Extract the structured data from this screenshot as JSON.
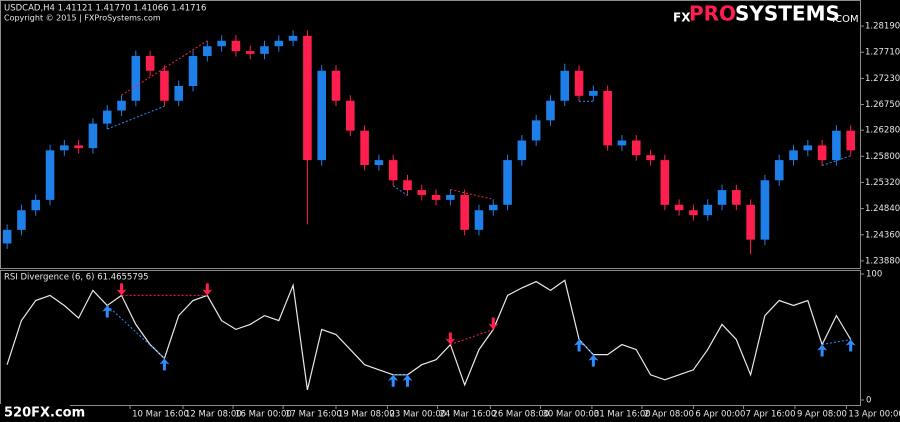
{
  "chart_data": {
    "type": "candlestick",
    "symbol_info": "USDCAD,H4  1.41121 1.41770 1.41066 1.41716",
    "copyright": "Copyright © 2015 | FXProSystems.com",
    "logo": {
      "prefix": "FX",
      "accent": "PRO",
      "main": "SYSTEMS",
      "suffix": ".COM"
    },
    "watermark": "520FX.com",
    "up_color": "#1e7fe8",
    "down_color": "#ff1f4f",
    "xlim": [
      -0.5,
      59.65
    ],
    "ylim": [
      1.2375,
      1.2865
    ],
    "yticks": [
      {
        "value": 1.2819,
        "label": "1.28190"
      },
      {
        "value": 1.2771,
        "label": "1.27710"
      },
      {
        "value": 1.2723,
        "label": "1.27230"
      },
      {
        "value": 1.2675,
        "label": "1.26750"
      },
      {
        "value": 1.2628,
        "label": "1.26280"
      },
      {
        "value": 1.258,
        "label": "1.25800"
      },
      {
        "value": 1.2532,
        "label": "1.25320"
      },
      {
        "value": 1.2484,
        "label": "1.24840"
      },
      {
        "value": 1.2436,
        "label": "1.24360"
      },
      {
        "value": 1.2388,
        "label": "1.23880"
      }
    ],
    "xticks": [
      {
        "value": 8.6,
        "label": "10 Mar 16:00"
      },
      {
        "value": 12.3,
        "label": "12 Mar 08:00"
      },
      {
        "value": 15.8,
        "label": "16 Mar 00:00"
      },
      {
        "value": 19.3,
        "label": "17 Mar 16:00"
      },
      {
        "value": 23.0,
        "label": "19 Mar 08:00"
      },
      {
        "value": 26.6,
        "label": "23 Mar 00:00"
      },
      {
        "value": 30.1,
        "label": "24 Mar 16:00"
      },
      {
        "value": 33.8,
        "label": "26 Mar 08:00"
      },
      {
        "value": 37.3,
        "label": "30 Mar 00:00"
      },
      {
        "value": 40.9,
        "label": "31 Mar 16:00"
      },
      {
        "value": 44.4,
        "label": "2 Apr 08:00"
      },
      {
        "value": 48.0,
        "label": "6 Apr 00:00"
      },
      {
        "value": 51.5,
        "label": "7 Apr 16:00"
      },
      {
        "value": 55.1,
        "label": "9 Apr 08:00"
      },
      {
        "value": 58.7,
        "label": "13 Apr 00:00"
      }
    ],
    "open": [
      1.242,
      1.2445,
      1.2481,
      1.25,
      1.2591,
      1.26,
      1.2595,
      1.264,
      1.2664,
      1.2682,
      1.2764,
      1.2737,
      1.2682,
      1.2709,
      1.2764,
      1.2782,
      1.2792,
      1.2773,
      1.2768,
      1.2782,
      1.2792,
      1.2801,
      1.2573,
      1.2737,
      1.2682,
      1.2627,
      1.2564,
      1.2573,
      1.2536,
      1.2518,
      1.2509,
      1.25,
      1.2509,
      1.2445,
      1.2481,
      1.2491,
      1.2573,
      1.2609,
      1.2646,
      1.2682,
      1.2737,
      1.2691,
      1.27,
      1.26,
      1.2609,
      1.2582,
      1.2573,
      1.2491,
      1.2481,
      1.2472,
      1.2491,
      1.2518,
      1.2491,
      1.2427,
      1.2536,
      1.2573,
      1.2591,
      1.26,
      1.2573,
      1.2627
    ],
    "high": [
      1.2455,
      1.2491,
      1.251,
      1.2601,
      1.261,
      1.261,
      1.265,
      1.2674,
      1.2692,
      1.2774,
      1.2774,
      1.2747,
      1.2719,
      1.2774,
      1.2792,
      1.2802,
      1.2802,
      1.2783,
      1.2792,
      1.2802,
      1.2811,
      1.2811,
      1.2747,
      1.2747,
      1.2692,
      1.2637,
      1.2583,
      1.2583,
      1.2546,
      1.2528,
      1.2519,
      1.2519,
      1.2519,
      1.2491,
      1.2501,
      1.2583,
      1.2619,
      1.2656,
      1.2692,
      1.275,
      1.2747,
      1.271,
      1.271,
      1.2619,
      1.2619,
      1.2592,
      1.2583,
      1.2501,
      1.2491,
      1.2501,
      1.2528,
      1.2528,
      1.2501,
      1.2546,
      1.2583,
      1.2601,
      1.261,
      1.261,
      1.2637,
      1.2637
    ],
    "low": [
      1.241,
      1.2435,
      1.2471,
      1.249,
      1.2581,
      1.2585,
      1.2585,
      1.263,
      1.2654,
      1.2672,
      1.2727,
      1.2672,
      1.2672,
      1.2699,
      1.2754,
      1.2772,
      1.2763,
      1.2758,
      1.2758,
      1.2772,
      1.2782,
      1.2455,
      1.2563,
      1.2672,
      1.2617,
      1.2554,
      1.2554,
      1.2526,
      1.2508,
      1.2499,
      1.249,
      1.249,
      1.2435,
      1.2435,
      1.2471,
      1.2481,
      1.2563,
      1.2599,
      1.2636,
      1.2672,
      1.2681,
      1.2681,
      1.259,
      1.259,
      1.2572,
      1.2563,
      1.2481,
      1.2471,
      1.2462,
      1.2462,
      1.2481,
      1.2481,
      1.24,
      1.2417,
      1.2526,
      1.2563,
      1.2581,
      1.2563,
      1.2563,
      1.2581
    ],
    "close": [
      1.2445,
      1.2481,
      1.25,
      1.2591,
      1.26,
      1.2595,
      1.264,
      1.2664,
      1.2682,
      1.2764,
      1.2737,
      1.2682,
      1.2709,
      1.2764,
      1.2782,
      1.2792,
      1.2773,
      1.2768,
      1.2782,
      1.2792,
      1.2801,
      1.2573,
      1.2737,
      1.2682,
      1.2627,
      1.2564,
      1.2573,
      1.2536,
      1.2518,
      1.2509,
      1.25,
      1.2509,
      1.2445,
      1.2481,
      1.2491,
      1.2573,
      1.2609,
      1.2646,
      1.2682,
      1.2737,
      1.2691,
      1.27,
      1.26,
      1.2609,
      1.2582,
      1.2573,
      1.2491,
      1.2481,
      1.2472,
      1.2491,
      1.2518,
      1.2491,
      1.2427,
      1.2536,
      1.2573,
      1.2591,
      1.26,
      1.2573,
      1.2627,
      1.2591
    ],
    "rsi": {
      "label": "RSI Divergence (6, 6) 61.4655795",
      "color": "#e8e8e8",
      "ylim": [
        0,
        100
      ],
      "yticks": [
        100,
        0
      ],
      "values": [
        28,
        63,
        79,
        83,
        75,
        65,
        87,
        75,
        83,
        60,
        44,
        33,
        67,
        79,
        83,
        63,
        56,
        60,
        67,
        63,
        91,
        8,
        56,
        52,
        40,
        28,
        24,
        20,
        20,
        28,
        32,
        44,
        12,
        40,
        56,
        83,
        89,
        94,
        87,
        95,
        48,
        36,
        36,
        44,
        40,
        20,
        16,
        20,
        24,
        40,
        60,
        48,
        20,
        67,
        79,
        75,
        79,
        44,
        67,
        48
      ]
    },
    "divergences": [
      {
        "type": "bearish",
        "from": 8,
        "to": 14,
        "color": "#ff1f4f"
      },
      {
        "type": "bearish",
        "from": 31,
        "to": 34,
        "color": "#ff1f4f"
      },
      {
        "type": "bullish",
        "from": 7,
        "to": 11,
        "color": "#2f8cff"
      },
      {
        "type": "bullish",
        "from": 27,
        "to": 28,
        "color": "#2f8cff"
      },
      {
        "type": "bullish",
        "from": 40,
        "to": 41,
        "color": "#2f8cff"
      },
      {
        "type": "bullish",
        "from": 57,
        "to": 59,
        "color": "#2f8cff"
      }
    ]
  }
}
